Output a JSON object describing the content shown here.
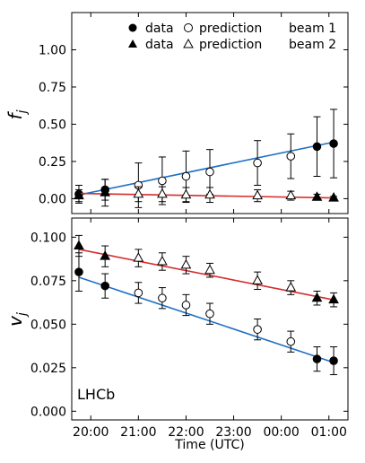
{
  "chart_data": [
    {
      "type": "scatter",
      "panel": "top",
      "ylabel": "f_j",
      "xlabel": "",
      "ylim": [
        -0.1,
        1.25
      ],
      "yticks": [
        0.0,
        0.25,
        0.5,
        0.75,
        1.0
      ],
      "ytick_labels": [
        "0.00",
        "0.25",
        "0.50",
        "0.75",
        "1.00"
      ],
      "xlim": [
        19.6,
        25.4
      ],
      "legend": {
        "placement": "top-right",
        "rows": [
          {
            "data_label": "data",
            "prediction_label": "prediction",
            "beam_label": "beam 1"
          },
          {
            "data_label": "data",
            "prediction_label": "prediction",
            "beam_label": "beam 2"
          }
        ]
      },
      "series": [
        {
          "name": "beam 1",
          "color": "#1f6fc5",
          "points": [
            {
              "x": 19.75,
              "y": 0.03,
              "err": 0.06,
              "kind": "data"
            },
            {
              "x": 20.3,
              "y": 0.06,
              "err": 0.07,
              "kind": "data"
            },
            {
              "x": 21.0,
              "y": 0.09,
              "err": 0.15,
              "kind": "prediction"
            },
            {
              "x": 21.5,
              "y": 0.12,
              "err": 0.16,
              "kind": "prediction"
            },
            {
              "x": 22.0,
              "y": 0.15,
              "err": 0.17,
              "kind": "prediction"
            },
            {
              "x": 22.5,
              "y": 0.18,
              "err": 0.15,
              "kind": "prediction"
            },
            {
              "x": 23.5,
              "y": 0.24,
              "err": 0.15,
              "kind": "prediction"
            },
            {
              "x": 24.2,
              "y": 0.285,
              "err": 0.15,
              "kind": "prediction"
            },
            {
              "x": 24.75,
              "y": 0.35,
              "err": 0.2,
              "kind": "data"
            },
            {
              "x": 25.1,
              "y": 0.37,
              "err": 0.23,
              "kind": "data"
            }
          ],
          "fit": [
            [
              19.75,
              0.025
            ],
            [
              25.1,
              0.38
            ]
          ]
        },
        {
          "name": "beam 2",
          "color": "#d62c2c",
          "points": [
            {
              "x": 19.75,
              "y": 0.02,
              "err": 0.04,
              "kind": "data"
            },
            {
              "x": 20.3,
              "y": 0.04,
              "err": 0.09,
              "kind": "data"
            },
            {
              "x": 21.0,
              "y": 0.03,
              "err": 0.05,
              "kind": "prediction"
            },
            {
              "x": 21.5,
              "y": 0.03,
              "err": 0.05,
              "kind": "prediction"
            },
            {
              "x": 22.0,
              "y": 0.025,
              "err": 0.05,
              "kind": "prediction"
            },
            {
              "x": 22.5,
              "y": 0.025,
              "err": 0.05,
              "kind": "prediction"
            },
            {
              "x": 23.5,
              "y": 0.02,
              "err": 0.04,
              "kind": "prediction"
            },
            {
              "x": 24.2,
              "y": 0.02,
              "err": 0.03,
              "kind": "prediction"
            },
            {
              "x": 24.75,
              "y": 0.01,
              "err": 0.02,
              "kind": "data"
            },
            {
              "x": 25.1,
              "y": 0.005,
              "err": 0.01,
              "kind": "data"
            }
          ],
          "fit": [
            [
              19.75,
              0.035
            ],
            [
              25.1,
              0.005
            ]
          ]
        }
      ]
    },
    {
      "type": "scatter",
      "panel": "bottom",
      "ylabel": "v_j",
      "xlabel": "Time (UTC)",
      "ylim": [
        -0.005,
        0.111
      ],
      "yticks": [
        0.0,
        0.025,
        0.05,
        0.075,
        0.1
      ],
      "ytick_labels": [
        "0.000",
        "0.025",
        "0.050",
        "0.075",
        "0.100"
      ],
      "xlim": [
        19.6,
        25.4
      ],
      "xticks": [
        20,
        21,
        22,
        23,
        24,
        25
      ],
      "xtick_labels": [
        "20:00",
        "21:00",
        "22:00",
        "23:00",
        "00:00",
        "01:00"
      ],
      "annotation": "LHCb",
      "series": [
        {
          "name": "beam 1",
          "color": "#1f6fc5",
          "points": [
            {
              "x": 19.75,
              "y": 0.08,
              "err": 0.011,
              "kind": "data"
            },
            {
              "x": 20.3,
              "y": 0.072,
              "err": 0.007,
              "kind": "data"
            },
            {
              "x": 21.0,
              "y": 0.068,
              "err": 0.006,
              "kind": "prediction"
            },
            {
              "x": 21.5,
              "y": 0.065,
              "err": 0.006,
              "kind": "prediction"
            },
            {
              "x": 22.0,
              "y": 0.061,
              "err": 0.006,
              "kind": "prediction"
            },
            {
              "x": 22.5,
              "y": 0.056,
              "err": 0.006,
              "kind": "prediction"
            },
            {
              "x": 23.5,
              "y": 0.047,
              "err": 0.006,
              "kind": "prediction"
            },
            {
              "x": 24.2,
              "y": 0.04,
              "err": 0.006,
              "kind": "prediction"
            },
            {
              "x": 24.75,
              "y": 0.03,
              "err": 0.007,
              "kind": "data"
            },
            {
              "x": 25.1,
              "y": 0.029,
              "err": 0.008,
              "kind": "data"
            }
          ],
          "fit": [
            [
              19.75,
              0.077
            ],
            [
              25.1,
              0.028
            ]
          ]
        },
        {
          "name": "beam 2",
          "color": "#d62c2c",
          "points": [
            {
              "x": 19.75,
              "y": 0.095,
              "err": 0.006,
              "kind": "data"
            },
            {
              "x": 20.3,
              "y": 0.089,
              "err": 0.006,
              "kind": "data"
            },
            {
              "x": 21.0,
              "y": 0.088,
              "err": 0.005,
              "kind": "prediction"
            },
            {
              "x": 21.5,
              "y": 0.086,
              "err": 0.005,
              "kind": "prediction"
            },
            {
              "x": 22.0,
              "y": 0.084,
              "err": 0.005,
              "kind": "prediction"
            },
            {
              "x": 22.5,
              "y": 0.081,
              "err": 0.004,
              "kind": "prediction"
            },
            {
              "x": 23.5,
              "y": 0.075,
              "err": 0.005,
              "kind": "prediction"
            },
            {
              "x": 24.2,
              "y": 0.071,
              "err": 0.004,
              "kind": "prediction"
            },
            {
              "x": 24.75,
              "y": 0.065,
              "err": 0.004,
              "kind": "data"
            },
            {
              "x": 25.1,
              "y": 0.064,
              "err": 0.004,
              "kind": "data"
            }
          ],
          "fit": [
            [
              19.75,
              0.093
            ],
            [
              25.1,
              0.064
            ]
          ]
        }
      ]
    }
  ]
}
